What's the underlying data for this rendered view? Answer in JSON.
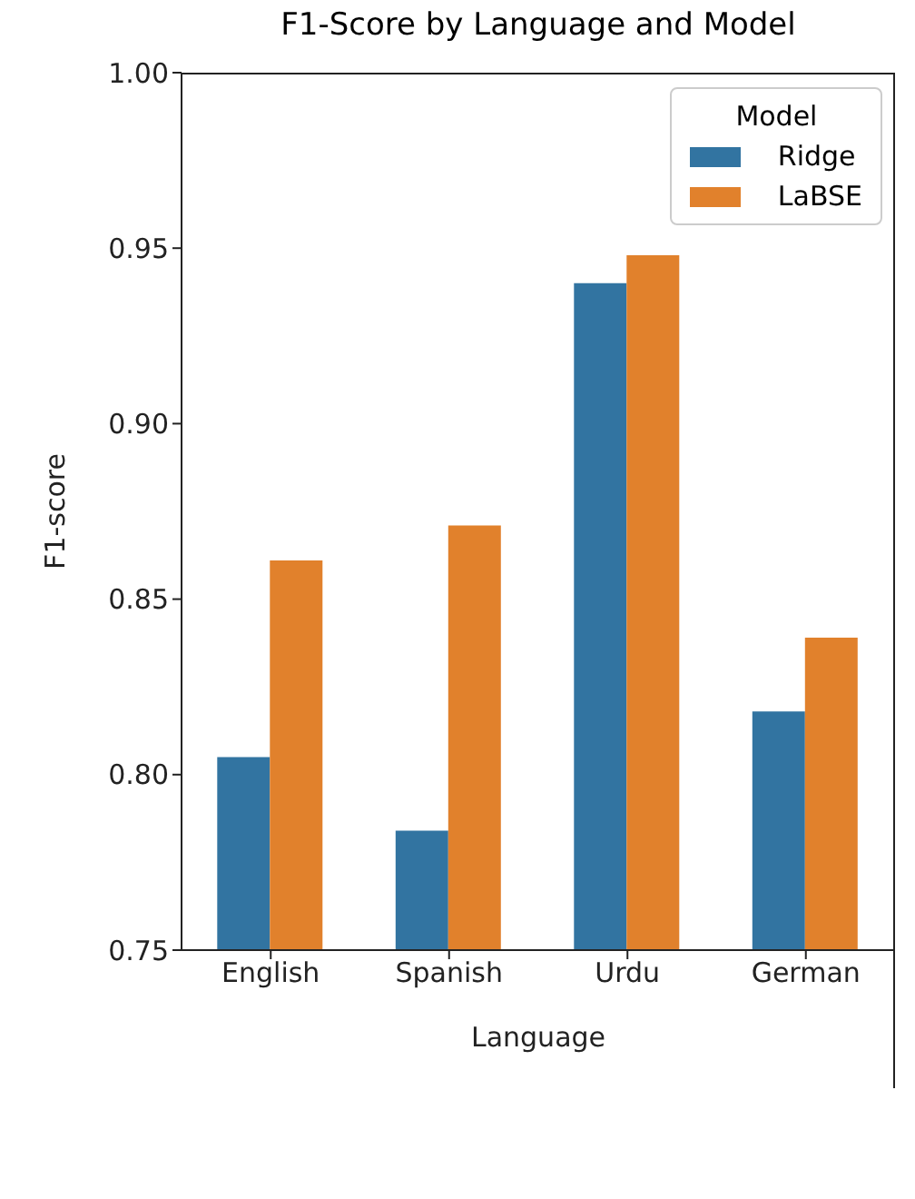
{
  "chart_data": {
    "type": "bar",
    "title": "F1-Score by Language and Model",
    "xlabel": "Language",
    "ylabel": "F1-score",
    "legend_title": "Model",
    "categories": [
      "English",
      "Spanish",
      "Urdu",
      "German"
    ],
    "series": [
      {
        "name": "Ridge",
        "color": "#3274a1",
        "values": [
          0.805,
          0.784,
          0.94,
          0.818
        ]
      },
      {
        "name": "LaBSE",
        "color": "#e1812c",
        "values": [
          0.861,
          0.871,
          0.948,
          0.839
        ]
      }
    ],
    "ylim": [
      0.75,
      1.0
    ],
    "yticks": [
      0.75,
      {
        "value": 0.8,
        "label": "0.80"
      },
      0.85,
      {
        "value": 0.9,
        "label": "0.90"
      },
      0.95,
      {
        "value": 1.0,
        "label": "1.00"
      }
    ],
    "grid": false,
    "legend": "top right"
  }
}
